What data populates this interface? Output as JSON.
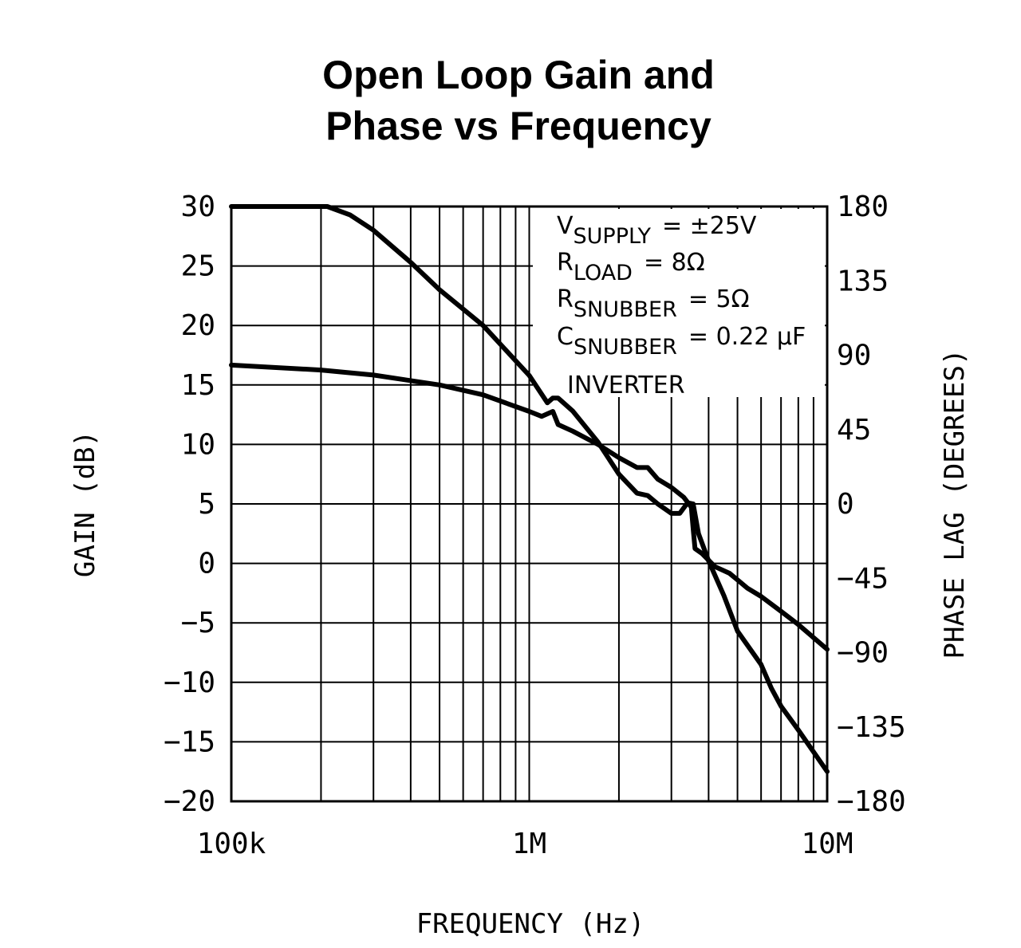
{
  "chart_data": {
    "type": "line",
    "title_line1": "Open Loop Gain and",
    "title_line2": "Phase vs Frequency",
    "xlabel": "FREQUENCY (Hz)",
    "ylabel_left": "GAIN (dB)",
    "ylabel_right": "PHASE LAG (DEGREES)",
    "x_scale": "log",
    "xlim": [
      100000,
      10000000
    ],
    "ylim_left": [
      -20,
      30
    ],
    "ylim_right": [
      -180,
      180
    ],
    "x_ticks": [
      {
        "value": 100000,
        "label": "100k"
      },
      {
        "value": 1000000,
        "label": "1M"
      },
      {
        "value": 10000000,
        "label": "10M"
      }
    ],
    "y_ticks_left": [
      {
        "value": 30,
        "label": "30"
      },
      {
        "value": 25,
        "label": "25"
      },
      {
        "value": 20,
        "label": "20"
      },
      {
        "value": 15,
        "label": "15"
      },
      {
        "value": 10,
        "label": "10"
      },
      {
        "value": 5,
        "label": "5"
      },
      {
        "value": 0,
        "label": "0"
      },
      {
        "value": -5,
        "label": "−5"
      },
      {
        "value": -10,
        "label": "−10"
      },
      {
        "value": -15,
        "label": "−15"
      },
      {
        "value": -20,
        "label": "−20"
      }
    ],
    "y_ticks_right": [
      {
        "value": 180,
        "label": "180"
      },
      {
        "value": 135,
        "label": "135"
      },
      {
        "value": 90,
        "label": "90"
      },
      {
        "value": 45,
        "label": "45"
      },
      {
        "value": 0,
        "label": "0"
      },
      {
        "value": -45,
        "label": "−45"
      },
      {
        "value": -90,
        "label": "−90"
      },
      {
        "value": -135,
        "label": "−135"
      },
      {
        "value": -180,
        "label": "−180"
      }
    ],
    "grid": true,
    "annotations": {
      "vsupply_main": "V",
      "vsupply_sub": "SUPPLY",
      "vsupply_val": "= ±25V",
      "rload_main": "R",
      "rload_sub": "LOAD",
      "rload_val": "= 8Ω",
      "rsnub_main": "R",
      "rsnub_sub": "SNUBBER",
      "rsnub_val": "= 5Ω",
      "csnub_main": "C",
      "csnub_sub": "SNUBBER",
      "csnub_val": "= 0.22 μF",
      "inverter": "INVERTER"
    },
    "series": [
      {
        "axis": "left",
        "x": [
          100000,
          210000,
          250000,
          300000,
          400000,
          500000,
          700000,
          1000000,
          1150000,
          1200000,
          1250000,
          1400000,
          1700000,
          2000000,
          2300000,
          2500000,
          2700000,
          3000000,
          3200000,
          3400000,
          3550000,
          3700000,
          4000000,
          4500000,
          5000000,
          6000000,
          6500000,
          7000000,
          8000000,
          10000000
        ],
        "values": [
          30,
          30,
          29.3,
          28,
          25.3,
          23,
          20,
          15.8,
          13.5,
          13.9,
          13.9,
          12.8,
          10.2,
          7.5,
          5.9,
          5.7,
          5.0,
          4.2,
          4.2,
          5.1,
          5.0,
          2.5,
          0.2,
          -2.7,
          -5.7,
          -8.5,
          -10.5,
          -12.0,
          -14.0,
          -17.5
        ]
      },
      {
        "axis": "right",
        "x": [
          100000,
          200000,
          300000,
          500000,
          700000,
          1000000,
          1100000,
          1200000,
          1250000,
          1400000,
          1700000,
          2000000,
          2300000,
          2500000,
          2700000,
          3000000,
          3300000,
          3500000,
          3550000,
          3600000,
          3800000,
          4200000,
          4700000,
          5000000,
          5400000,
          6000000,
          7000000,
          8000000,
          10000000
        ],
        "values": [
          84,
          81,
          78,
          72,
          66,
          56,
          53,
          56,
          48,
          44,
          36,
          28,
          22,
          22,
          15,
          10,
          4,
          -2,
          -15,
          -27,
          -30,
          -38,
          -42,
          -46,
          -51,
          -56,
          -65,
          -73,
          -88
        ]
      }
    ]
  }
}
